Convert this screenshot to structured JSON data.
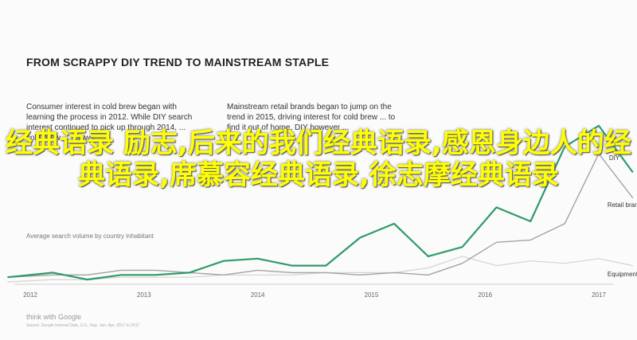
{
  "chart_data": {
    "type": "line",
    "title": "FROM SCRAPPY DIY TREND TO MAINSTREAM STAPLE",
    "annotations": [
      "Consumer interest in cold brew began with learning the process in 2012. While DIY search interest continued to pick up through 2014, ... cold brew ... shows ...",
      "Mainstream retail brands began to jump on the trend in 2015, driving interest for cold brew ... to find it out of home. DIY however ..."
    ],
    "ylabel": "Average search volume by country inhabitant",
    "x_tick_labels": [
      "2012",
      "2013",
      "2014",
      "2015",
      "2016",
      "2017"
    ],
    "x": [
      2011.8,
      2012.2,
      2012.5,
      2012.8,
      2013.1,
      2013.4,
      2013.7,
      2014.0,
      2014.3,
      2014.6,
      2014.9,
      2015.2,
      2015.5,
      2015.8,
      2016.1,
      2016.4,
      2016.7,
      2017.0,
      2017.3
    ],
    "series": [
      {
        "name": "DIY",
        "color": "#2f9a6a",
        "values": [
          3,
          5,
          2,
          4,
          4,
          5,
          10,
          11,
          8,
          8,
          20,
          26,
          12,
          16,
          33,
          27,
          59,
          68,
          48
        ]
      },
      {
        "name": "Retail brands",
        "color": "#a3a3a3",
        "values": [
          3,
          4,
          4,
          6,
          6,
          5,
          4,
          6,
          5,
          5,
          4,
          5,
          4,
          9,
          18,
          19,
          26,
          56,
          37
        ]
      },
      {
        "name": "Equipment",
        "color": "#d3d3d3",
        "values": [
          1,
          2,
          2,
          3,
          3,
          3,
          4,
          4,
          4,
          5,
          5,
          5,
          7,
          12,
          8,
          10,
          9,
          11,
          8
        ]
      }
    ],
    "ylim": [
      0,
      110
    ],
    "grid": false,
    "legend": "right, inline labels"
  },
  "credit": "think with Google",
  "source": "Source: Google Internal Data, U.S., Sep. Jan.-Apr. 2017 to 2017",
  "overlay_text": "经典语录 励志,后来的我们经典语录,感恩身边人的经典语录,席慕容经典语录,徐志摩经典语录"
}
